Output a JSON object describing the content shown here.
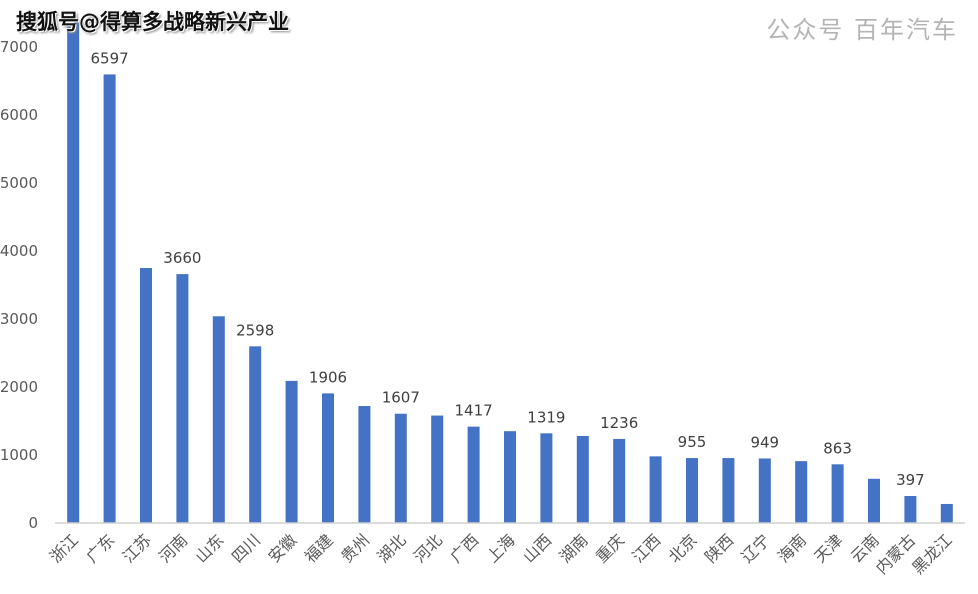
{
  "watermark_title": "搜狐号@得算多战略新兴产业",
  "watermark_footer": "公众号 百年汽车",
  "chart_data": {
    "type": "bar",
    "title": "",
    "xlabel": "",
    "ylabel": "",
    "ylim": [
      0,
      7000
    ],
    "yticks": [
      0,
      1000,
      2000,
      3000,
      4000,
      5000,
      6000,
      7000
    ],
    "grid": false,
    "bar_color": "#4472C4",
    "categories": [
      "浙江",
      "广东",
      "江苏",
      "河南",
      "山东",
      "四川",
      "安徽",
      "福建",
      "贵州",
      "湖北",
      "河北",
      "广西",
      "上海",
      "山西",
      "湖南",
      "重庆",
      "江西",
      "北京",
      "陕西",
      "辽宁",
      "海南",
      "天津",
      "云南",
      "内蒙古",
      "黑龙江"
    ],
    "values": [
      7400,
      6597,
      3750,
      3660,
      3040,
      2598,
      2090,
      1906,
      1720,
      1607,
      1580,
      1417,
      1350,
      1319,
      1280,
      1236,
      980,
      955,
      955,
      949,
      910,
      863,
      650,
      397,
      280
    ],
    "data_labels": {
      "1": "6597",
      "3": "3660",
      "5": "2598",
      "7": "1906",
      "9": "1607",
      "11": "1417",
      "13": "1319",
      "15": "1236",
      "17": "955",
      "19": "949",
      "21": "863",
      "23": "397"
    }
  }
}
